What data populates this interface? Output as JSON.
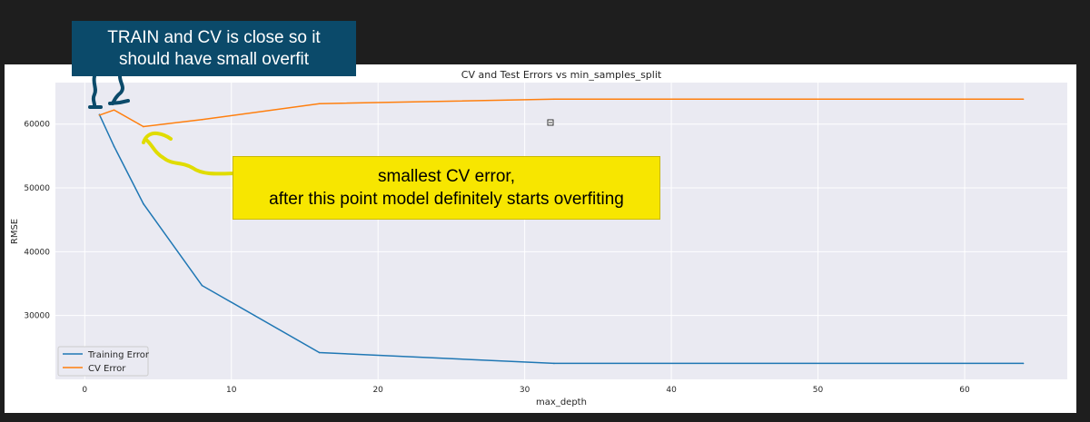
{
  "chart_data": {
    "type": "line",
    "title": "CV and Test Errors vs min_samples_split",
    "xlabel": "max_depth",
    "ylabel": "RMSE",
    "xlim": [
      -2,
      67
    ],
    "ylim": [
      20000,
      66500
    ],
    "xticks": [
      0,
      10,
      20,
      30,
      40,
      50,
      60
    ],
    "yticks": [
      30000,
      40000,
      50000,
      60000
    ],
    "grid": true,
    "legend_position": "lower-left",
    "series": [
      {
        "name": "Training Error",
        "color": "#1f77b4",
        "x": [
          1,
          2,
          4,
          8,
          16,
          32,
          64
        ],
        "y": [
          61500,
          56500,
          47500,
          34700,
          24200,
          22500,
          22500
        ]
      },
      {
        "name": "CV Error",
        "color": "#ff7f0e",
        "x": [
          1,
          2,
          4,
          8,
          16,
          32,
          64
        ],
        "y": [
          61400,
          62200,
          59600,
          60700,
          63200,
          63900,
          63900
        ]
      }
    ]
  },
  "annotations": {
    "blue_note": "TRAIN and CV is close so it\nshould have small overfit",
    "yellow_note": "smallest CV error,\nafter this point model definitely starts overfiting",
    "blue_color": "#0b4a6a",
    "yellow_color": "#f7e600"
  }
}
